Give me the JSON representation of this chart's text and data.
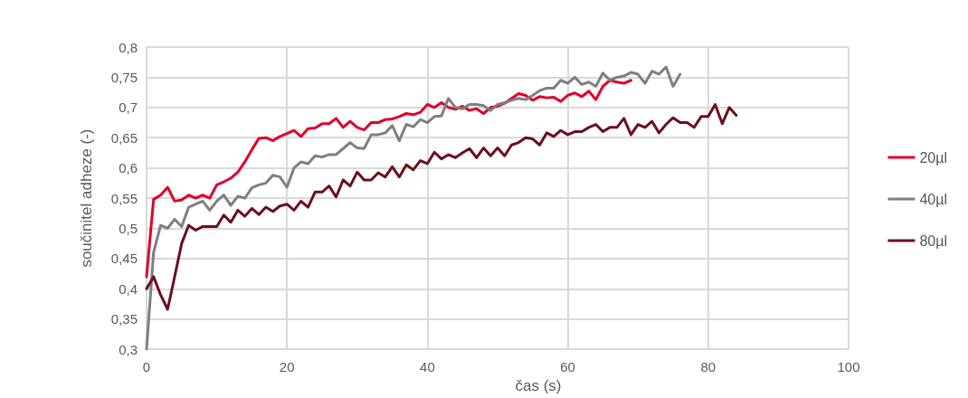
{
  "chart_data": {
    "type": "line",
    "xlabel": "čas (s)",
    "ylabel": "součinitel adheze (-)",
    "x": [
      0,
      1,
      2,
      3,
      4,
      5,
      6,
      7,
      8,
      9,
      10,
      11,
      12,
      13,
      14,
      15,
      16,
      17,
      18,
      19,
      20,
      21,
      22,
      23,
      24,
      25,
      26,
      27,
      28,
      29,
      30,
      31,
      32,
      33,
      34,
      35,
      36,
      37,
      38,
      39,
      40,
      41,
      42,
      43,
      44,
      45,
      46,
      47,
      48,
      49,
      50,
      51,
      52,
      53,
      54,
      55,
      56,
      57,
      58,
      59,
      60,
      61,
      62,
      63,
      64,
      65,
      66,
      67,
      68,
      69,
      70,
      71,
      72,
      73,
      74,
      75,
      76,
      77,
      78,
      79,
      80,
      81,
      82,
      83,
      84
    ],
    "series": [
      {
        "name": "20µl",
        "color": "#e0002a",
        "values": [
          0.42,
          0.548,
          0.555,
          0.568,
          0.545,
          0.547,
          0.555,
          0.55,
          0.555,
          0.55,
          0.572,
          0.577,
          0.583,
          0.593,
          0.61,
          0.63,
          0.649,
          0.65,
          0.645,
          0.652,
          0.657,
          0.662,
          0.652,
          0.665,
          0.666,
          0.673,
          0.673,
          0.682,
          0.667,
          0.677,
          0.667,
          0.663,
          0.675,
          0.675,
          0.68,
          0.681,
          0.685,
          0.69,
          0.688,
          0.692,
          0.705,
          0.7,
          0.708,
          0.7,
          0.697,
          0.702,
          0.695,
          0.698,
          0.69,
          0.7,
          0.702,
          0.707,
          0.715,
          0.723,
          0.72,
          0.712,
          0.718,
          0.716,
          0.717,
          0.71,
          0.72,
          0.724,
          0.718,
          0.727,
          0.713,
          0.735,
          0.745,
          0.742,
          0.74,
          0.745,
          null,
          null,
          null,
          null,
          null,
          null,
          null,
          null,
          null,
          null,
          null,
          null,
          null,
          null,
          null
        ]
      },
      {
        "name": "40µl",
        "color": "#7f7f7f",
        "values": [
          0.3,
          0.46,
          0.505,
          0.5,
          0.515,
          0.503,
          0.535,
          0.54,
          0.545,
          0.53,
          0.545,
          0.555,
          0.538,
          0.553,
          0.55,
          0.567,
          0.572,
          0.575,
          0.588,
          0.585,
          0.568,
          0.6,
          0.61,
          0.607,
          0.62,
          0.618,
          0.622,
          0.622,
          0.632,
          0.642,
          0.633,
          0.632,
          0.655,
          0.655,
          0.658,
          0.67,
          0.645,
          0.672,
          0.668,
          0.68,
          0.675,
          0.685,
          0.686,
          0.715,
          0.7,
          0.698,
          0.705,
          0.705,
          0.703,
          0.695,
          0.705,
          0.708,
          0.712,
          0.715,
          0.713,
          0.72,
          0.728,
          0.732,
          0.732,
          0.745,
          0.74,
          0.75,
          0.738,
          0.742,
          0.735,
          0.757,
          0.745,
          0.75,
          0.752,
          0.758,
          0.755,
          0.74,
          0.76,
          0.755,
          0.767,
          0.735,
          0.755,
          null,
          null,
          null,
          null,
          null,
          null,
          null,
          null
        ]
      },
      {
        "name": "80µl",
        "color": "#6b0f1e",
        "values": [
          0.4,
          0.42,
          0.39,
          0.366,
          0.42,
          0.475,
          0.505,
          0.497,
          0.503,
          0.503,
          0.503,
          0.522,
          0.51,
          0.53,
          0.52,
          0.533,
          0.523,
          0.535,
          0.528,
          0.537,
          0.54,
          0.53,
          0.545,
          0.535,
          0.56,
          0.56,
          0.57,
          0.552,
          0.58,
          0.57,
          0.593,
          0.58,
          0.58,
          0.592,
          0.585,
          0.602,
          0.585,
          0.605,
          0.597,
          0.612,
          0.607,
          0.626,
          0.615,
          0.622,
          0.617,
          0.625,
          0.632,
          0.617,
          0.633,
          0.62,
          0.633,
          0.62,
          0.638,
          0.642,
          0.65,
          0.648,
          0.638,
          0.658,
          0.652,
          0.662,
          0.655,
          0.66,
          0.66,
          0.667,
          0.672,
          0.66,
          0.667,
          0.667,
          0.682,
          0.655,
          0.672,
          0.667,
          0.677,
          0.658,
          0.672,
          0.683,
          0.675,
          0.675,
          0.667,
          0.685,
          0.685,
          0.705,
          0.673,
          0.7,
          0.687
        ]
      }
    ],
    "xlim": [
      0,
      100
    ],
    "xticks": [
      0,
      20,
      40,
      60,
      80,
      100
    ],
    "ylim": [
      0.3,
      0.8
    ],
    "yticks": [
      {
        "value": 0.3,
        "label": "0,3"
      },
      {
        "value": 0.35,
        "label": "0,35"
      },
      {
        "value": 0.4,
        "label": "0,4"
      },
      {
        "value": 0.45,
        "label": "0,45"
      },
      {
        "value": 0.5,
        "label": "0,5"
      },
      {
        "value": 0.55,
        "label": "0,55"
      },
      {
        "value": 0.6,
        "label": "0,6"
      },
      {
        "value": 0.65,
        "label": "0,65"
      },
      {
        "value": 0.7,
        "label": "0,7"
      },
      {
        "value": 0.75,
        "label": "0,75"
      },
      {
        "value": 0.8,
        "label": "0,8"
      }
    ],
    "grid": true,
    "legend": "right",
    "marker": "none",
    "line_style": "solid"
  }
}
